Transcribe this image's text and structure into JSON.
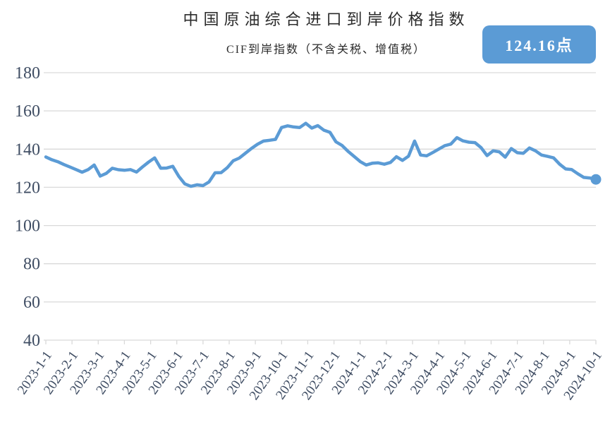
{
  "header": {
    "title": "中国原油综合进口到岸价格指数",
    "subtitle": "CIF到岸指数（不含关税、增值税）",
    "badge": {
      "label": "124.16点",
      "bg_color": "#5b9bd5",
      "text_color": "#ffffff"
    }
  },
  "chart_data": {
    "type": "line",
    "title": "中国原油综合进口到岸价格指数",
    "subtitle": "CIF到岸指数（不含关税、增值税）",
    "latest_value_label": "124.16点",
    "legend": "none",
    "grid": "horizontal",
    "end_marker": true,
    "line_color": "#5b9bd5",
    "grid_color": "#d9d9d9",
    "axis_label_color": "#3f4d63",
    "ylim": [
      40,
      180
    ],
    "y_ticks": [
      40,
      60,
      80,
      100,
      120,
      140,
      160,
      180
    ],
    "x_tick_labels": [
      "2023-1-1",
      "2023-2-1",
      "2023-3-1",
      "2023-4-1",
      "2023-5-1",
      "2023-6-1",
      "2023-7-1",
      "2023-8-1",
      "2023-9-1",
      "2023-10-1",
      "2023-11-1",
      "2023-12-1",
      "2024-1-1",
      "2024-2-1",
      "2024-3-1",
      "2024-4-1",
      "2024-5-1",
      "2024-6-1",
      "2024-7-1",
      "2024-8-1",
      "2024-9-1",
      "2024-10-1"
    ],
    "series": [
      {
        "name": "CIF到岸指数（不含关税、增值税）",
        "frequency": "weekly",
        "unit": "点",
        "values": [
          135.9,
          134.4,
          133.4,
          131.9,
          130.6,
          129.3,
          127.9,
          129.3,
          131.7,
          125.9,
          127.3,
          130.0,
          129.2,
          128.9,
          129.3,
          128.0,
          130.7,
          133.2,
          135.4,
          130.0,
          130.1,
          131.0,
          125.7,
          121.8,
          120.5,
          121.3,
          120.9,
          122.8,
          127.6,
          127.7,
          130.2,
          133.9,
          135.3,
          137.8,
          140.3,
          142.5,
          144.2,
          144.6,
          145.1,
          151.3,
          152.2,
          151.6,
          151.3,
          153.5,
          151.0,
          152.3,
          149.9,
          148.8,
          143.8,
          141.9,
          138.8,
          136.2,
          133.5,
          131.7,
          132.6,
          132.8,
          132.1,
          133.0,
          136.0,
          134.1,
          136.3,
          144.2,
          136.9,
          136.5,
          138.2,
          140.0,
          141.8,
          142.6,
          146.0,
          144.3,
          143.6,
          143.4,
          140.8,
          136.6,
          139.1,
          138.6,
          135.8,
          140.3,
          138.1,
          137.8,
          140.6,
          139.1,
          136.9,
          136.2,
          135.4,
          132.1,
          129.6,
          129.3,
          127.1,
          125.2,
          124.9,
          124.16
        ]
      }
    ]
  }
}
